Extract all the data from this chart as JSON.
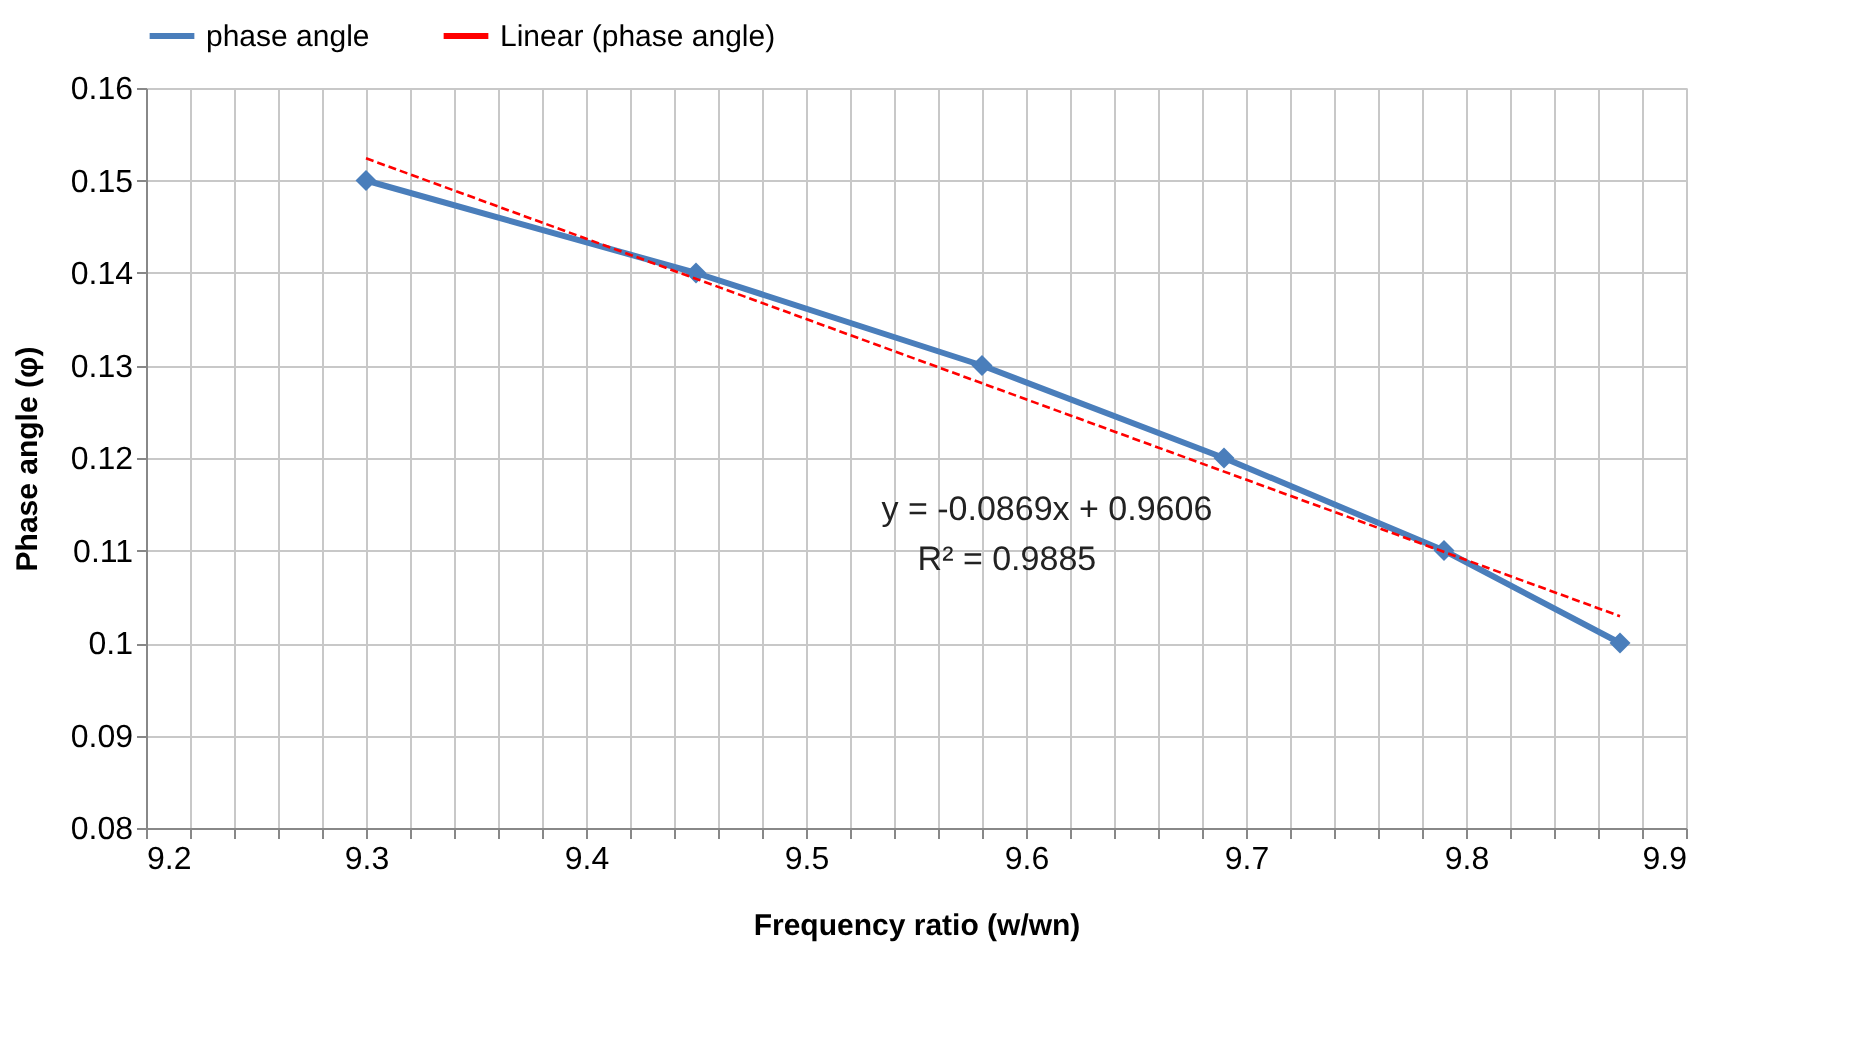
{
  "chart_data": {
    "type": "line",
    "xlabel": "Frequency ratio (w/wn)",
    "ylabel": "Phase angle (φ)",
    "series": [
      {
        "name": "phase angle",
        "color": "#4a7ebb",
        "marker": "diamond",
        "line_style": "solid",
        "x": [
          9.3,
          9.45,
          9.58,
          9.69,
          9.79,
          9.87
        ],
        "values": [
          0.15,
          0.14,
          0.13,
          0.12,
          0.11,
          0.1
        ]
      },
      {
        "name": "Linear (phase angle)",
        "color": "#ff0000",
        "marker": "none",
        "line_style": "dashed",
        "x": [
          9.3,
          9.87
        ],
        "values": [
          0.1524,
          0.1029
        ]
      }
    ],
    "xlim": [
      9.2,
      9.9
    ],
    "ylim": [
      0.08,
      0.16
    ],
    "xticks": [
      9.2,
      {
        "value": 9.22,
        "label": null
      },
      {
        "value": 9.24,
        "label": null
      },
      {
        "value": 9.26,
        "label": null
      },
      {
        "value": 9.28,
        "label": null
      },
      9.3,
      {
        "value": 9.32,
        "label": null
      },
      {
        "value": 9.34,
        "label": null
      },
      {
        "value": 9.36,
        "label": null
      },
      {
        "value": 9.38,
        "label": null
      },
      9.4,
      {
        "value": 9.42,
        "label": null
      },
      {
        "value": 9.44,
        "label": null
      },
      {
        "value": 9.46,
        "label": null
      },
      {
        "value": 9.48,
        "label": null
      },
      9.5,
      {
        "value": 9.52,
        "label": null
      },
      {
        "value": 9.54,
        "label": null
      },
      {
        "value": 9.56,
        "label": null
      },
      {
        "value": 9.58,
        "label": null
      },
      9.6,
      {
        "value": 9.62,
        "label": null
      },
      {
        "value": 9.64,
        "label": null
      },
      {
        "value": 9.66,
        "label": null
      },
      {
        "value": 9.68,
        "label": null
      },
      9.7,
      {
        "value": 9.72,
        "label": null
      },
      {
        "value": 9.74,
        "label": null
      },
      {
        "value": 9.76,
        "label": null
      },
      {
        "value": 9.78,
        "label": null
      },
      9.8,
      {
        "value": 9.82,
        "label": null
      },
      {
        "value": 9.84,
        "label": null
      },
      {
        "value": 9.86,
        "label": null
      },
      {
        "value": 9.88,
        "label": null
      },
      9.9
    ],
    "yticks": [
      0.08,
      0.09,
      0.1,
      0.11,
      0.12,
      0.13,
      0.14,
      0.15,
      0.16
    ],
    "grid": true,
    "legend": "top",
    "annotations": [
      "y = -0.0869x + 0.9606",
      "R² = 0.9885"
    ]
  }
}
